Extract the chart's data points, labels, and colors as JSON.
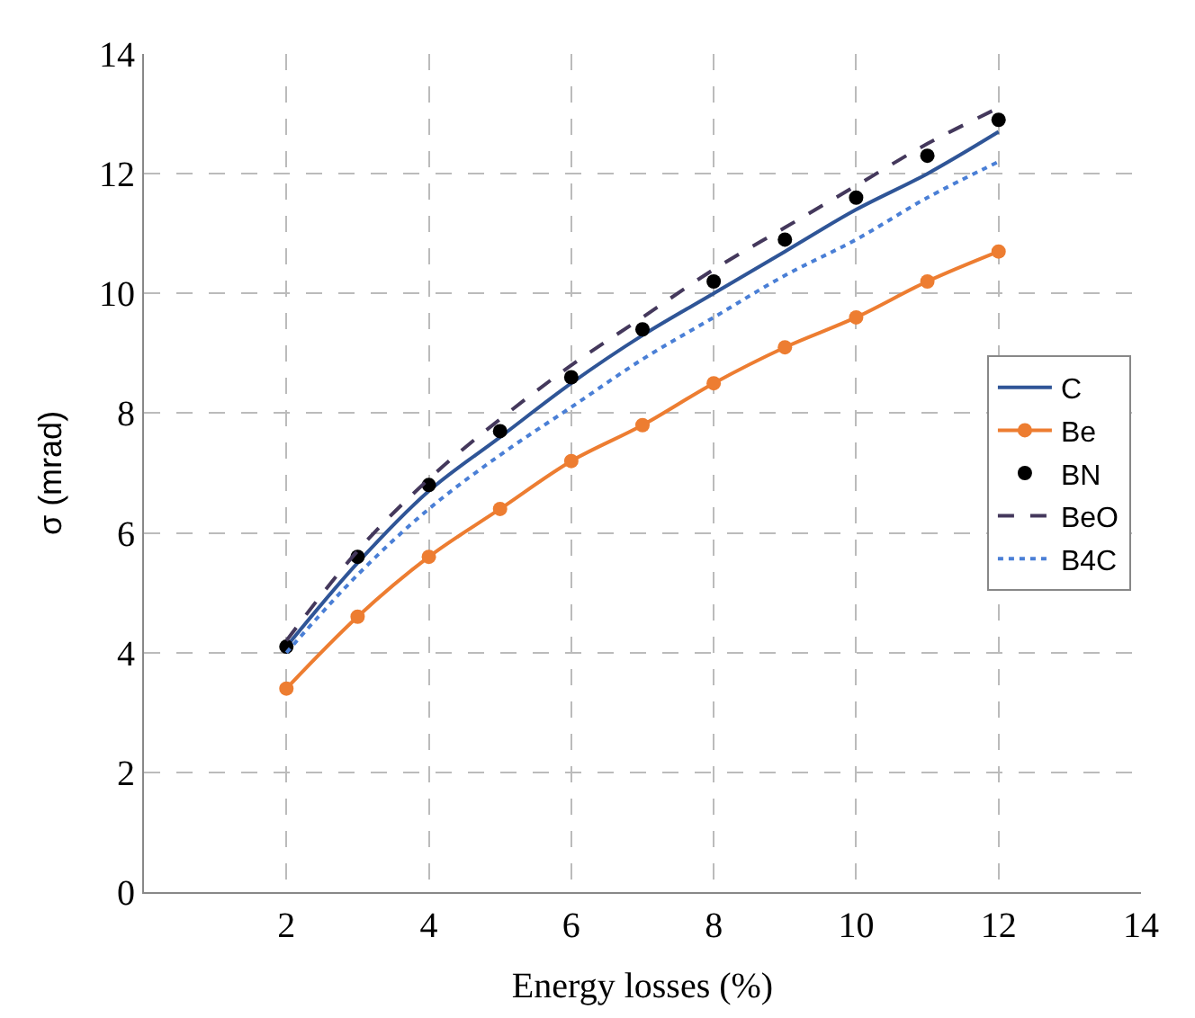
{
  "chart_data": {
    "type": "line",
    "xlabel": "Energy losses (%)",
    "ylabel": "σ (mrad)",
    "x": [
      2,
      3,
      4,
      5,
      6,
      7,
      8,
      9,
      10,
      11,
      12
    ],
    "series": [
      {
        "name": "C",
        "color": "#2f5597",
        "line_style": "solid",
        "marker": "none",
        "values": [
          4.1,
          5.5,
          6.7,
          7.6,
          8.5,
          9.3,
          10.0,
          10.7,
          11.4,
          12.0,
          12.7
        ]
      },
      {
        "name": "Be",
        "color": "#ed7d31",
        "line_style": "solid",
        "marker": "circle",
        "values": [
          3.4,
          4.6,
          5.6,
          6.4,
          7.2,
          7.8,
          8.5,
          9.1,
          9.6,
          10.2,
          10.7
        ]
      },
      {
        "name": "BN",
        "type": "scatter",
        "color": "#000000",
        "marker": "circle",
        "values": [
          4.1,
          5.6,
          6.8,
          7.7,
          8.6,
          9.4,
          10.2,
          10.9,
          11.6,
          12.3,
          12.9
        ]
      },
      {
        "name": "BeO",
        "color": "#44385c",
        "line_style": "dashed",
        "marker": "none",
        "values": [
          4.2,
          5.7,
          6.9,
          7.9,
          8.8,
          9.6,
          10.4,
          11.1,
          11.8,
          12.5,
          13.1
        ]
      },
      {
        "name": "B4C",
        "color": "#4a7fd6",
        "line_style": "dotted",
        "marker": "none",
        "values": [
          4.0,
          5.3,
          6.4,
          7.3,
          8.1,
          8.9,
          9.6,
          10.3,
          10.9,
          11.6,
          12.2
        ]
      }
    ],
    "xlim": [
      0,
      14
    ],
    "xticks": [
      2,
      4,
      6,
      8,
      10,
      12,
      14
    ],
    "ylim": [
      0,
      14
    ],
    "yticks": [
      0,
      2,
      4,
      6,
      8,
      10,
      12,
      14
    ],
    "grid": true,
    "legend": "right"
  }
}
